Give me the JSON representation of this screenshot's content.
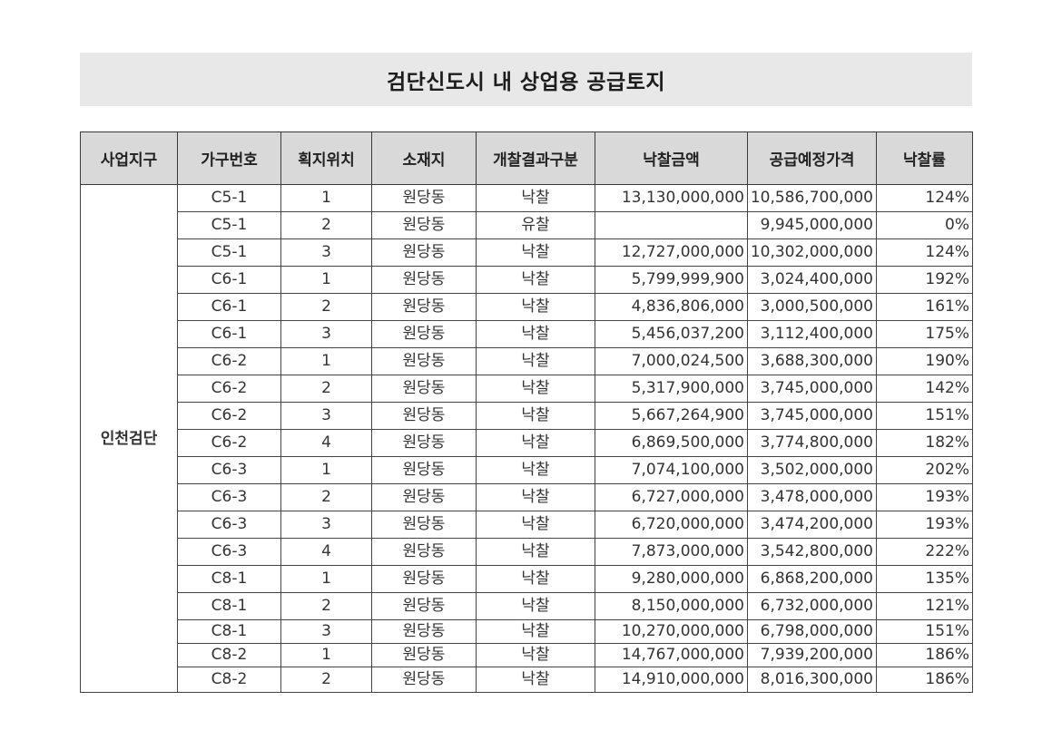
{
  "title": "검단신도시 내 상업용 공급토지",
  "headers": {
    "district": "사업지구",
    "block": "가구번호",
    "lot": "획지위치",
    "location": "소재지",
    "result": "개찰결과구분",
    "bid_amount": "낙찰금액",
    "planned_price": "공급예정가격",
    "bid_rate": "낙찰률"
  },
  "district_name": "인천검단",
  "rows": [
    {
      "block": "C5-1",
      "lot": "1",
      "location": "원당동",
      "result": "낙찰",
      "bid_amount": "13,130,000,000",
      "planned_price": "10,586,700,000",
      "bid_rate": "124%"
    },
    {
      "block": "C5-1",
      "lot": "2",
      "location": "원당동",
      "result": "유찰",
      "bid_amount": "",
      "planned_price": "9,945,000,000",
      "bid_rate": "0%"
    },
    {
      "block": "C5-1",
      "lot": "3",
      "location": "원당동",
      "result": "낙찰",
      "bid_amount": "12,727,000,000",
      "planned_price": "10,302,000,000",
      "bid_rate": "124%"
    },
    {
      "block": "C6-1",
      "lot": "1",
      "location": "원당동",
      "result": "낙찰",
      "bid_amount": "5,799,999,900",
      "planned_price": "3,024,400,000",
      "bid_rate": "192%"
    },
    {
      "block": "C6-1",
      "lot": "2",
      "location": "원당동",
      "result": "낙찰",
      "bid_amount": "4,836,806,000",
      "planned_price": "3,000,500,000",
      "bid_rate": "161%"
    },
    {
      "block": "C6-1",
      "lot": "3",
      "location": "원당동",
      "result": "낙찰",
      "bid_amount": "5,456,037,200",
      "planned_price": "3,112,400,000",
      "bid_rate": "175%"
    },
    {
      "block": "C6-2",
      "lot": "1",
      "location": "원당동",
      "result": "낙찰",
      "bid_amount": "7,000,024,500",
      "planned_price": "3,688,300,000",
      "bid_rate": "190%"
    },
    {
      "block": "C6-2",
      "lot": "2",
      "location": "원당동",
      "result": "낙찰",
      "bid_amount": "5,317,900,000",
      "planned_price": "3,745,000,000",
      "bid_rate": "142%"
    },
    {
      "block": "C6-2",
      "lot": "3",
      "location": "원당동",
      "result": "낙찰",
      "bid_amount": "5,667,264,900",
      "planned_price": "3,745,000,000",
      "bid_rate": "151%"
    },
    {
      "block": "C6-2",
      "lot": "4",
      "location": "원당동",
      "result": "낙찰",
      "bid_amount": "6,869,500,000",
      "planned_price": "3,774,800,000",
      "bid_rate": "182%"
    },
    {
      "block": "C6-3",
      "lot": "1",
      "location": "원당동",
      "result": "낙찰",
      "bid_amount": "7,074,100,000",
      "planned_price": "3,502,000,000",
      "bid_rate": "202%"
    },
    {
      "block": "C6-3",
      "lot": "2",
      "location": "원당동",
      "result": "낙찰",
      "bid_amount": "6,727,000,000",
      "planned_price": "3,478,000,000",
      "bid_rate": "193%"
    },
    {
      "block": "C6-3",
      "lot": "3",
      "location": "원당동",
      "result": "낙찰",
      "bid_amount": "6,720,000,000",
      "planned_price": "3,474,200,000",
      "bid_rate": "193%"
    },
    {
      "block": "C6-3",
      "lot": "4",
      "location": "원당동",
      "result": "낙찰",
      "bid_amount": "7,873,000,000",
      "planned_price": "3,542,800,000",
      "bid_rate": "222%"
    },
    {
      "block": "C8-1",
      "lot": "1",
      "location": "원당동",
      "result": "낙찰",
      "bid_amount": "9,280,000,000",
      "planned_price": "6,868,200,000",
      "bid_rate": "135%"
    },
    {
      "block": "C8-1",
      "lot": "2",
      "location": "원당동",
      "result": "낙찰",
      "bid_amount": "8,150,000,000",
      "planned_price": "6,732,000,000",
      "bid_rate": "121%"
    },
    {
      "block": "C8-1",
      "lot": "3",
      "location": "원당동",
      "result": "낙찰",
      "bid_amount": "10,270,000,000",
      "planned_price": "6,798,000,000",
      "bid_rate": "151%"
    },
    {
      "block": "C8-2",
      "lot": "1",
      "location": "원당동",
      "result": "낙찰",
      "bid_amount": "14,767,000,000",
      "planned_price": "7,939,200,000",
      "bid_rate": "186%"
    },
    {
      "block": "C8-2",
      "lot": "2",
      "location": "원당동",
      "result": "낙찰",
      "bid_amount": "14,910,000,000",
      "planned_price": "8,016,300,000",
      "bid_rate": "186%"
    }
  ]
}
